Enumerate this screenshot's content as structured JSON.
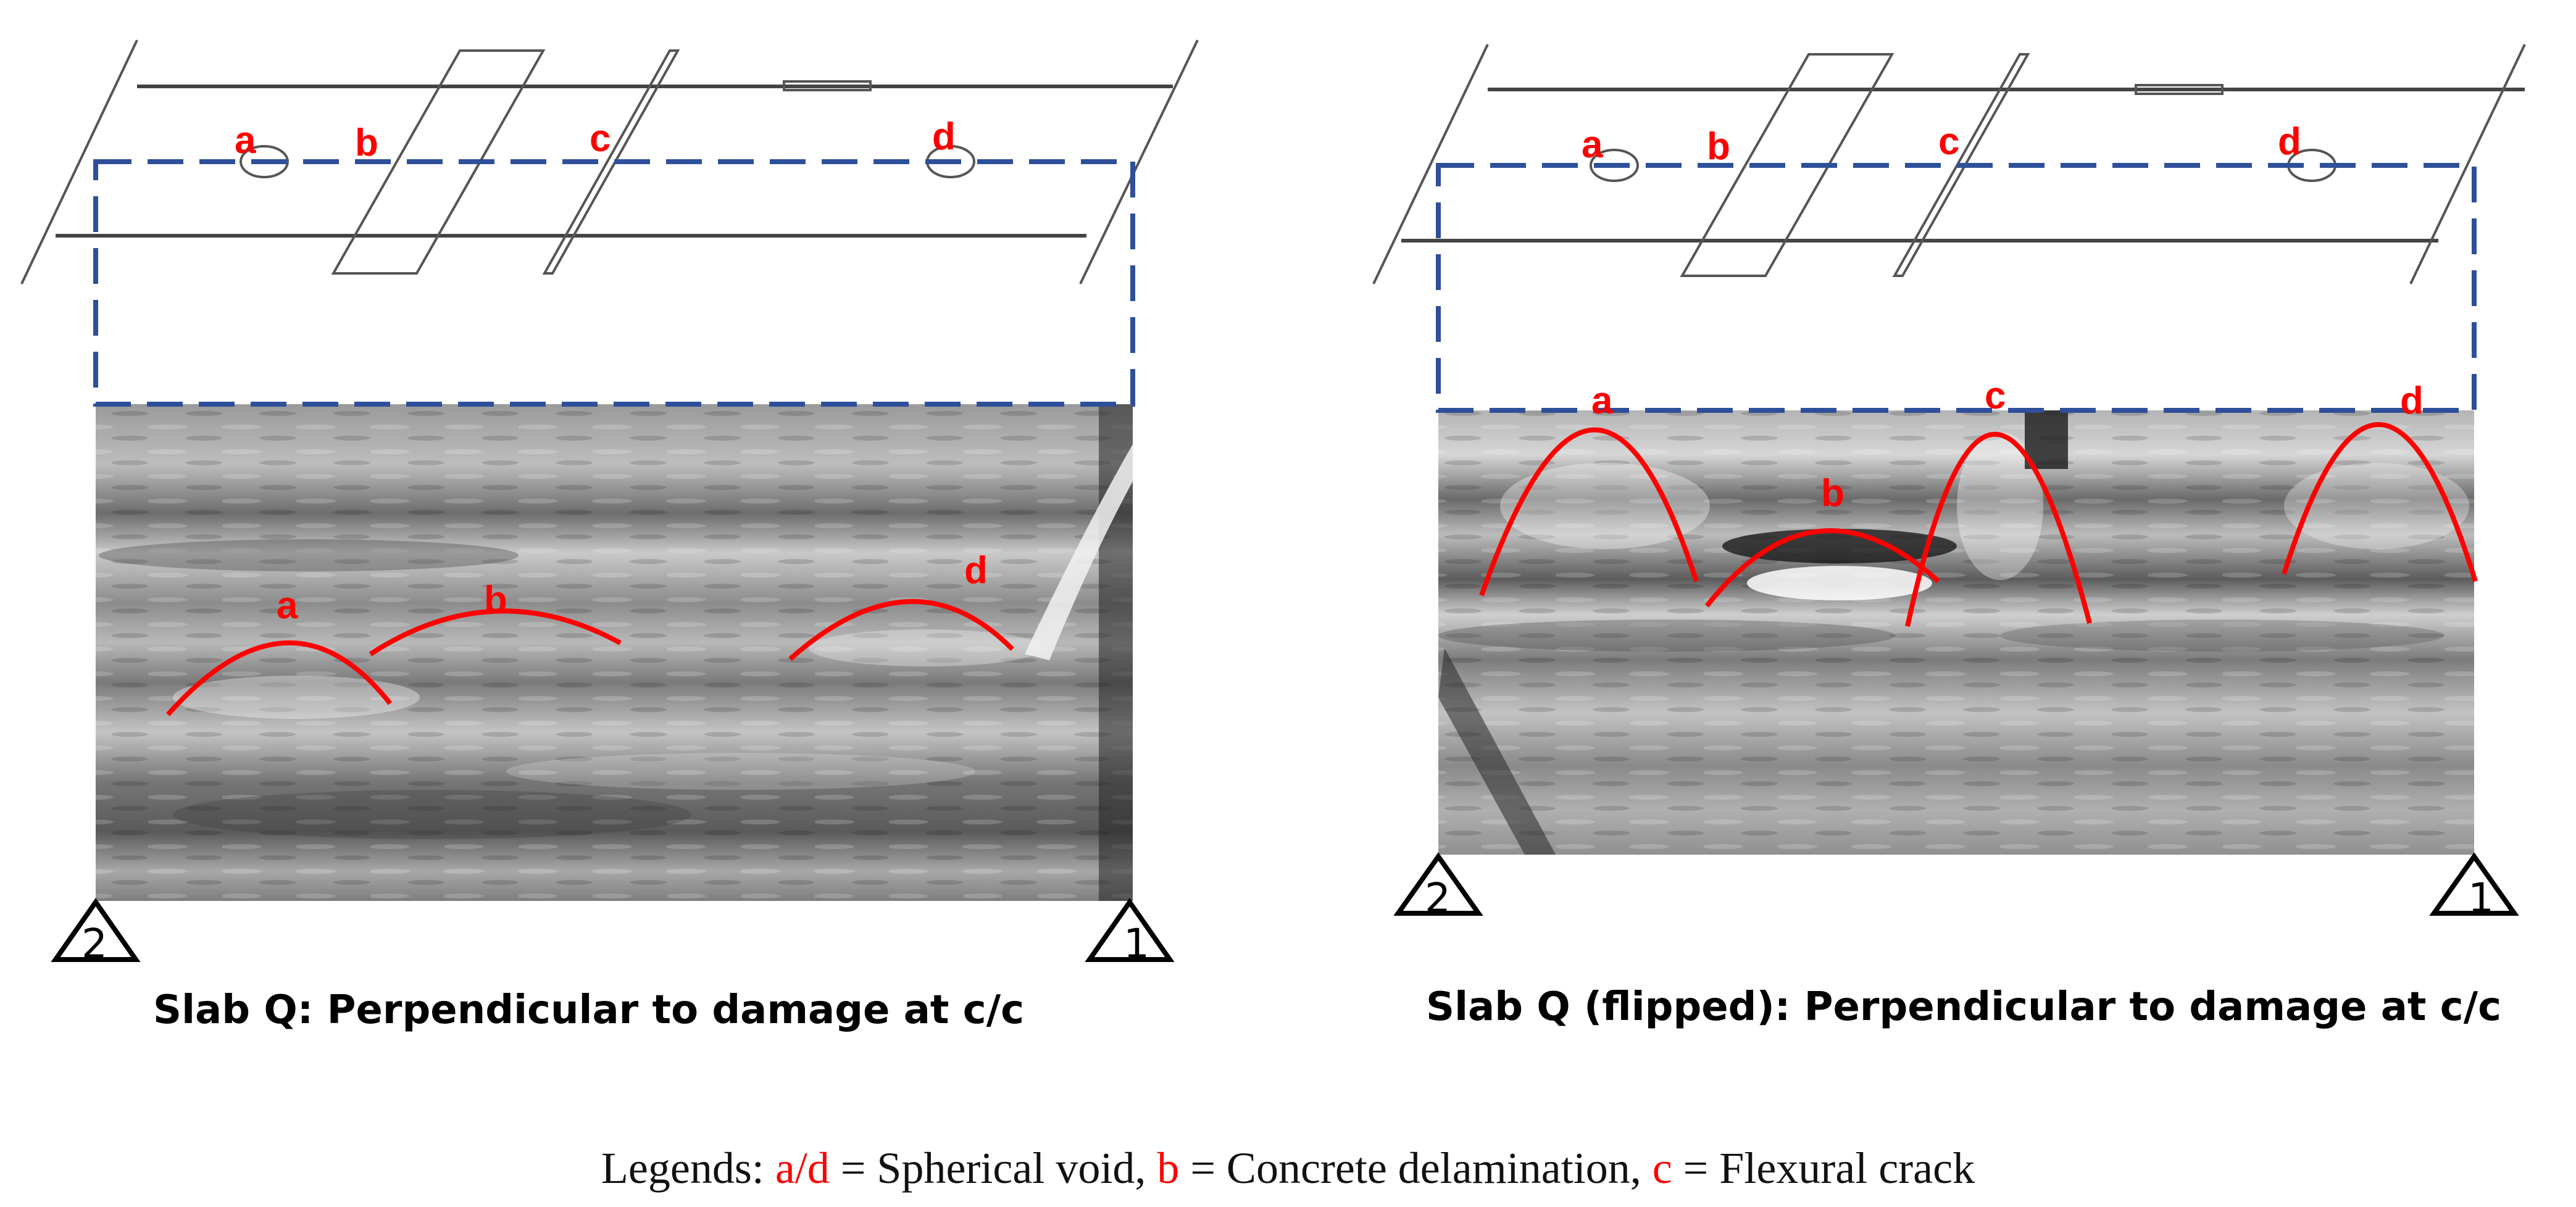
{
  "panels": [
    {
      "title": "Slab Q: Perpendicular to damage at c/c",
      "top_labels": [
        "a",
        "b",
        "c",
        "d"
      ],
      "radargram_labels": [
        "a",
        "b",
        "d"
      ],
      "supports": [
        "2",
        "1"
      ]
    },
    {
      "title": "Slab Q (flipped): Perpendicular to damage at c/c",
      "top_labels": [
        "a",
        "b",
        "c",
        "d"
      ],
      "radargram_labels": [
        "a",
        "b",
        "c",
        "d"
      ],
      "supports": [
        "2",
        "1"
      ]
    }
  ],
  "legend": {
    "prefix": "Legends: ",
    "k1": "a/d",
    "v1": " = Spherical void, ",
    "k2": "b",
    "v2": " = Concrete delamination, ",
    "k3": "c",
    "v3": " = Flexural crack"
  },
  "colors": {
    "annotation": "#ff0000",
    "dashed_box": "#2e4f9a",
    "slab_outline": "#555555"
  }
}
